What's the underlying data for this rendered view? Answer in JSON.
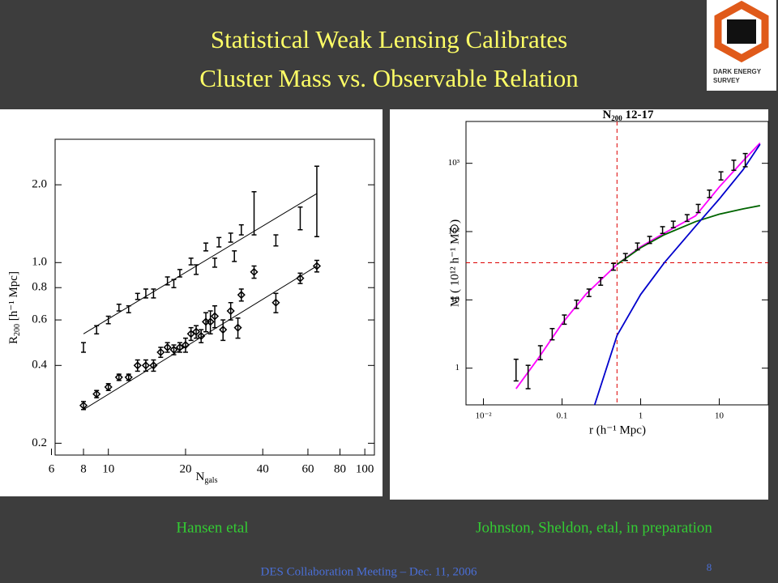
{
  "slide": {
    "title": [
      "Statistical Weak Lensing Calibrates",
      "Cluster Mass vs. Observable Relation"
    ],
    "captions": [
      "Hansen etal",
      "Johnston, Sheldon, etal, in preparation"
    ],
    "footer": "DES Collaboration Meeting – Dec. 11, 2006",
    "page": "8",
    "logo": [
      "DARK ENERGY",
      "SURVEY"
    ]
  },
  "chart_data": [
    {
      "type": "scatter",
      "xlog": true,
      "ylog": true,
      "xlabel": {
        "text": "N",
        "sub": "gals"
      },
      "ylabel": {
        "text": "R",
        "sub": "200",
        "rest": " [h⁻¹ Mpc]"
      },
      "xlim": [
        6.2,
        109
      ],
      "ylim": [
        0.18,
        3.0
      ],
      "xticks": [
        6,
        8,
        10,
        20,
        40,
        60,
        80,
        100
      ],
      "yticks": [
        0.2,
        0.4,
        0.6,
        0.8,
        {
          "value": 1,
          "label": "1.0"
        },
        {
          "value": 2,
          "label": "2.0"
        }
      ],
      "series": [
        {
          "marker": "none",
          "color": "#000000",
          "x": [
            8,
            9,
            10,
            11,
            12,
            13,
            14,
            15,
            17,
            18,
            19,
            21,
            22,
            24,
            26,
            27,
            30,
            31,
            33,
            37,
            45,
            56,
            65
          ],
          "values": [
            0.47,
            0.55,
            0.6,
            0.67,
            0.66,
            0.74,
            0.76,
            0.76,
            0.85,
            0.83,
            0.91,
            1.01,
            0.94,
            1.15,
            1.0,
            1.2,
            1.25,
            1.06,
            1.34,
            1.58,
            1.22,
            1.49,
            1.81
          ],
          "errors": [
            0.02,
            0.02,
            0.02,
            0.02,
            0.02,
            0.02,
            0.03,
            0.03,
            0.03,
            0.03,
            0.03,
            0.03,
            0.04,
            0.04,
            0.04,
            0.05,
            0.05,
            0.05,
            0.06,
            0.3,
            0.06,
            0.15,
            0.55
          ],
          "fit": {
            "x": [
              8,
              65
            ],
            "values": [
              0.53,
              1.85
            ]
          }
        },
        {
          "marker": "diamond",
          "color": "#000000",
          "x": [
            8,
            9,
            10,
            11,
            12,
            13,
            14,
            15,
            16,
            17,
            18,
            19,
            20,
            21,
            22,
            23,
            24,
            25,
            26,
            28,
            30,
            32,
            33,
            37,
            45,
            56,
            65
          ],
          "values": [
            0.28,
            0.31,
            0.33,
            0.36,
            0.36,
            0.4,
            0.4,
            0.4,
            0.45,
            0.47,
            0.46,
            0.47,
            0.48,
            0.53,
            0.54,
            0.52,
            0.59,
            0.59,
            0.62,
            0.55,
            0.65,
            0.56,
            0.75,
            0.92,
            0.7,
            0.87,
            0.97
          ],
          "errors": [
            0.01,
            0.01,
            0.01,
            0.01,
            0.01,
            0.02,
            0.02,
            0.02,
            0.02,
            0.02,
            0.02,
            0.02,
            0.03,
            0.03,
            0.03,
            0.03,
            0.05,
            0.06,
            0.06,
            0.05,
            0.05,
            0.05,
            0.04,
            0.05,
            0.06,
            0.04,
            0.05
          ],
          "fit": {
            "x": [
              8,
              65
            ],
            "values": [
              0.27,
              0.97
            ]
          }
        }
      ]
    },
    {
      "type": "scatter",
      "xlog": true,
      "ylog": true,
      "title": {
        "text": "N",
        "sub": "200",
        "rest": "  12-17"
      },
      "xlabel": {
        "text": "r (h⁻¹ Mpc)"
      },
      "ylabel": {
        "text": "M  ( 10¹² h⁻¹ M⊙)"
      },
      "xlim": [
        0.006,
        42
      ],
      "ylim": [
        0.29,
        4100
      ],
      "xticks": [
        {
          "value": 0.01,
          "label": "10⁻²"
        },
        0.1,
        1,
        10
      ],
      "yticks": [
        1,
        10,
        {
          "value": 100,
          "label": "10²"
        },
        {
          "value": 1000,
          "label": "10³"
        }
      ],
      "series": [
        {
          "marker": "none",
          "color": "#000000",
          "x": [
            0.026,
            0.037,
            0.053,
            0.075,
            0.107,
            0.153,
            0.22,
            0.31,
            0.45,
            0.64,
            0.91,
            1.3,
            1.9,
            2.6,
            3.9,
            5.4,
            7.5,
            10.5,
            15.3,
            21.4
          ],
          "values": [
            1.0,
            0.8,
            1.73,
            3.2,
            5.2,
            8.7,
            12.8,
            18.8,
            30.7,
            42.7,
            61,
            76,
            106,
            128,
            159,
            220,
            360,
            660,
            950,
            1140
          ],
          "errors": [
            0.35,
            0.3,
            0.4,
            0.6,
            0.8,
            1.2,
            1.6,
            2.4,
            3.5,
            5,
            7,
            9,
            12,
            14,
            18,
            30,
            45,
            90,
            160,
            250
          ]
        }
      ],
      "curves": [
        {
          "color": "#ff00ff",
          "x": [
            0.026,
            0.05,
            0.1,
            0.2,
            0.5,
            1,
            2,
            5,
            10,
            20,
            33
          ],
          "values": [
            0.5,
            1.4,
            4.5,
            12,
            33,
            60,
            95,
            170,
            450,
            1080,
            1980
          ]
        },
        {
          "color": "#006400",
          "x": [
            0.5,
            1,
            2,
            5,
            10,
            20,
            33
          ],
          "values": [
            33,
            58,
            90,
            140,
            180,
            215,
            240
          ]
        },
        {
          "color": "#0000cc",
          "x": [
            0.26,
            0.5,
            1,
            2,
            5,
            10,
            20,
            33
          ],
          "values": [
            0.29,
            3,
            12,
            35,
            120,
            300,
            800,
            1900
          ]
        }
      ],
      "vline": 0.5,
      "hline": 35,
      "ref_color": "#dd0000"
    }
  ]
}
